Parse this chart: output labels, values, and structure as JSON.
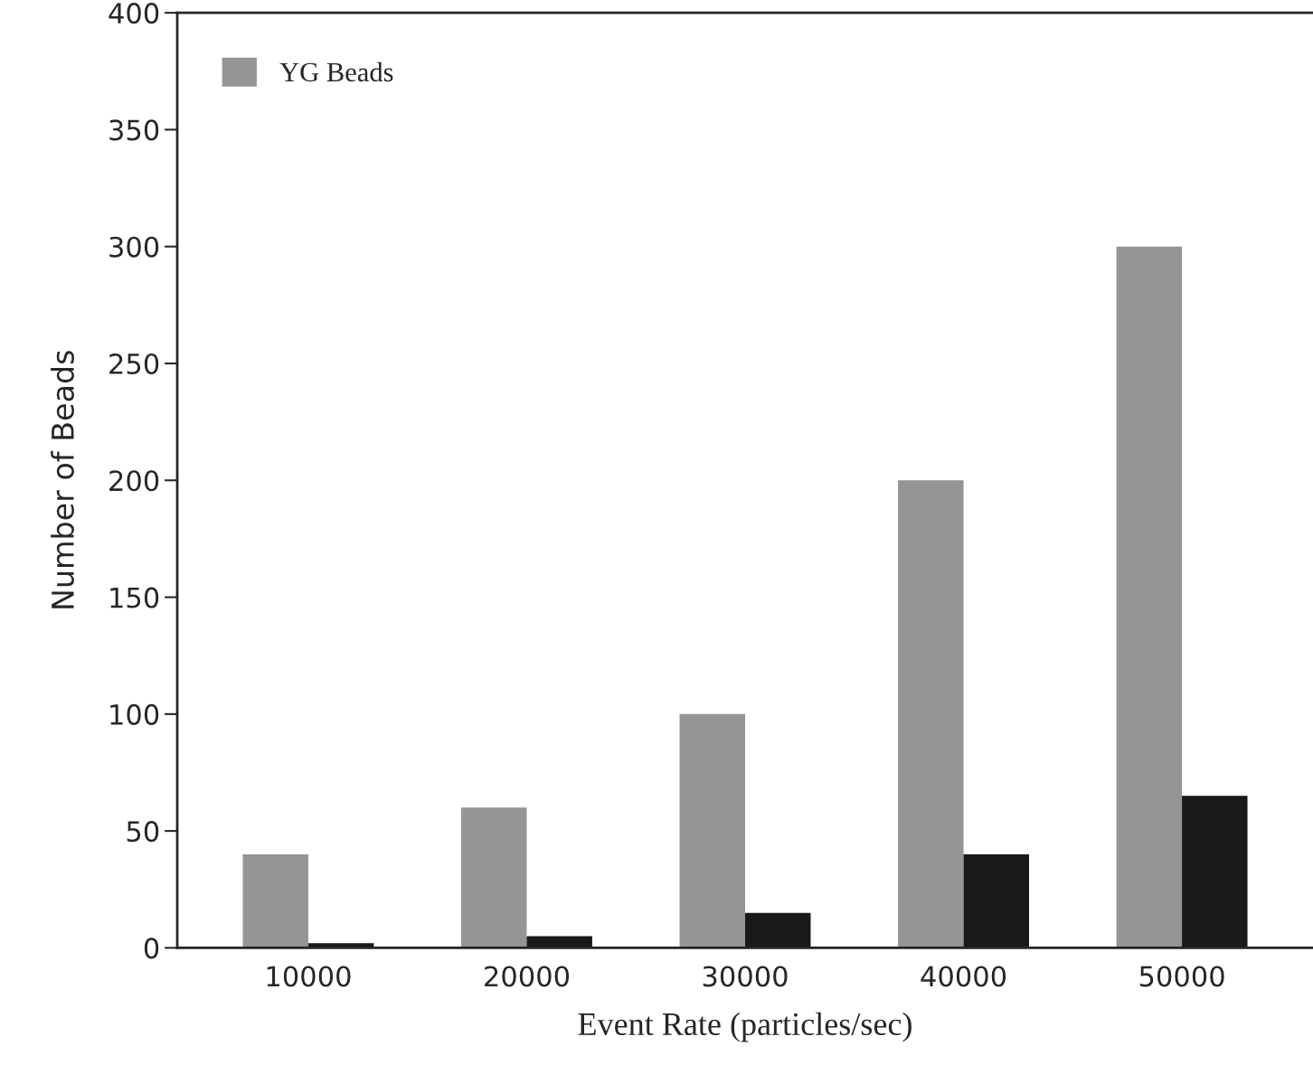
{
  "chart_data": {
    "type": "bar",
    "xlabel": "Event Rate (particles/sec)",
    "ylabel": "Number of Beads",
    "categories": [
      "10000",
      "20000",
      "30000",
      "40000",
      "50000"
    ],
    "series": [
      {
        "name": "YG Beads",
        "color": "#959595",
        "values": [
          40,
          60,
          100,
          200,
          300
        ]
      },
      {
        "color": "#191919",
        "values": [
          2,
          5,
          15,
          40,
          65
        ]
      }
    ],
    "ylim": [
      0,
      400
    ],
    "yticks": [
      0,
      50,
      100,
      150,
      200,
      250,
      300,
      350,
      400
    ],
    "grid": false,
    "legend": "top left"
  }
}
